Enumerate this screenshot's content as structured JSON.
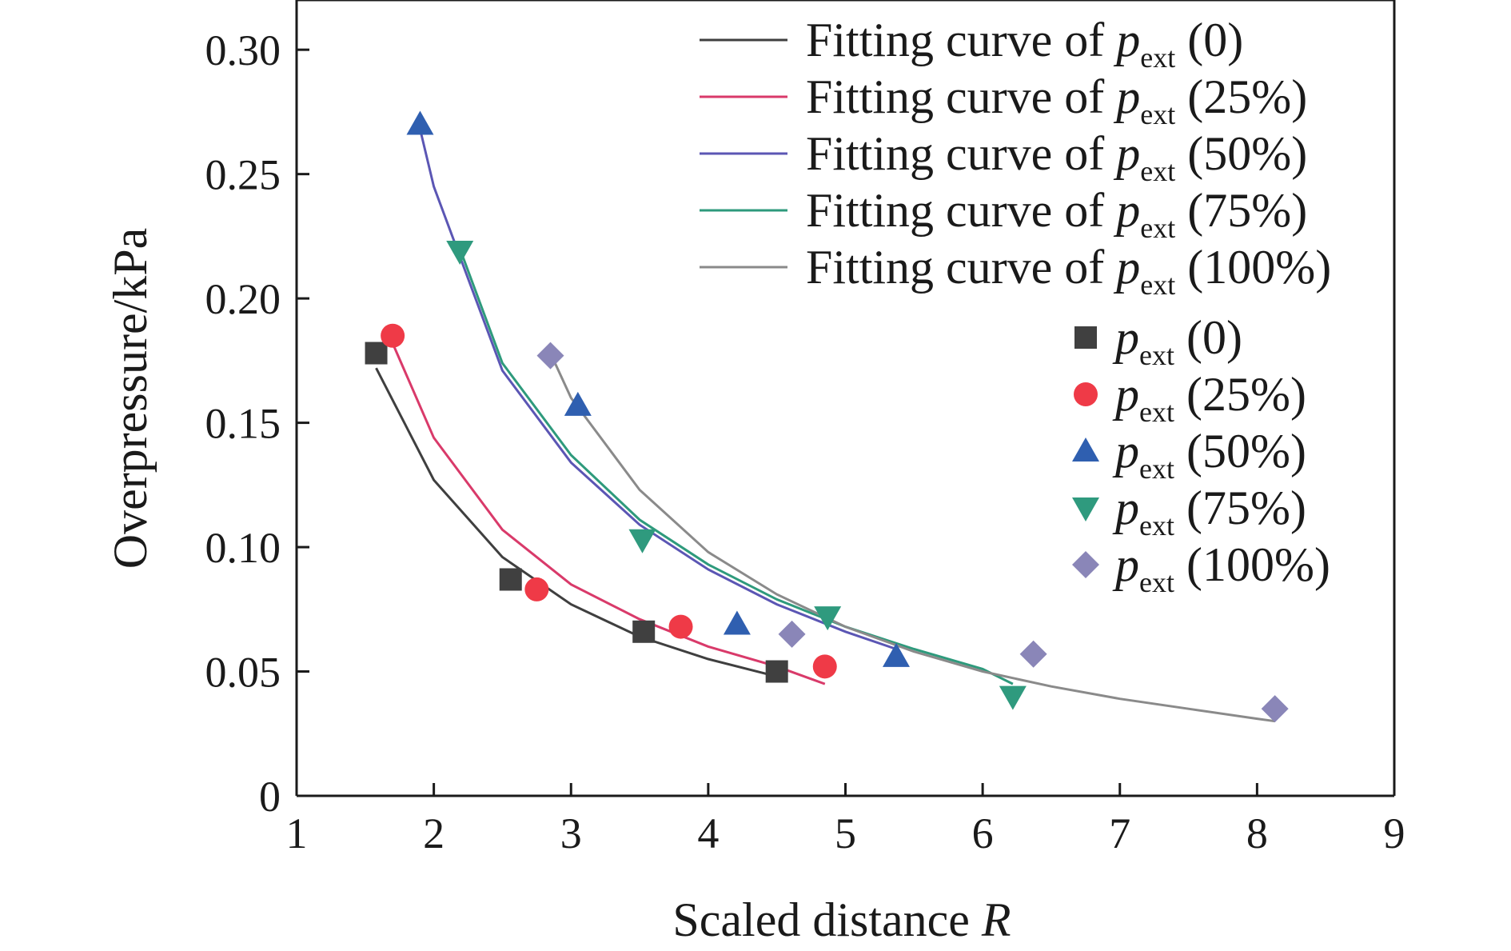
{
  "chart_data": {
    "type": "scatter",
    "xlabel": "Scaled distance",
    "xlabel_var": "R",
    "ylabel": "Overpressure/kPa",
    "xlim": [
      1,
      9
    ],
    "ylim": [
      0,
      0.32
    ],
    "xticks": [
      {
        "value": 1,
        "label": "1"
      },
      {
        "value": 2,
        "label": "2"
      },
      {
        "value": 3,
        "label": "3"
      },
      {
        "value": 4,
        "label": "4"
      },
      {
        "value": 5,
        "label": "5"
      },
      {
        "value": 6,
        "label": "6"
      },
      {
        "value": 7,
        "label": "7"
      },
      {
        "value": 8,
        "label": "8"
      },
      {
        "value": 9,
        "label": "9"
      }
    ],
    "yticks": [
      {
        "value": 0,
        "label": "0"
      },
      {
        "value": 0.05,
        "label": "0.05"
      },
      {
        "value": 0.1,
        "label": "0.10"
      },
      {
        "value": 0.15,
        "label": "0.15"
      },
      {
        "value": 0.2,
        "label": "0.20"
      },
      {
        "value": 0.25,
        "label": "0.25"
      },
      {
        "value": 0.3,
        "label": "0.30"
      }
    ],
    "grid": false,
    "legend_position": "top-right",
    "series": [
      {
        "name": "p_ext (0)",
        "symbol": "p",
        "subscript": "ext",
        "suffix": " (0)",
        "fit_prefix": "Fitting curve of ",
        "marker": "square",
        "marker_color": "#404040",
        "line_color": "#3f3f3f",
        "x": [
          1.58,
          2.56,
          3.53,
          4.5
        ],
        "y": [
          0.178,
          0.087,
          0.066,
          0.05
        ],
        "fit_x": [
          1.58,
          2.0,
          2.5,
          3.0,
          3.5,
          4.0,
          4.5
        ],
        "fit_y": [
          0.172,
          0.127,
          0.096,
          0.077,
          0.064,
          0.055,
          0.048
        ]
      },
      {
        "name": "p_ext (25%)",
        "symbol": "p",
        "subscript": "ext",
        "suffix": " (25%)",
        "fit_prefix": "Fitting curve of ",
        "marker": "circle",
        "marker_color": "#ef3a47",
        "line_color": "#d93a6a",
        "x": [
          1.7,
          2.75,
          3.8,
          4.85
        ],
        "y": [
          0.185,
          0.083,
          0.068,
          0.052
        ],
        "fit_x": [
          1.7,
          2.0,
          2.5,
          3.0,
          3.5,
          4.0,
          4.5,
          4.85
        ],
        "fit_y": [
          0.182,
          0.144,
          0.107,
          0.085,
          0.071,
          0.06,
          0.052,
          0.045
        ]
      },
      {
        "name": "p_ext (50%)",
        "symbol": "p",
        "subscript": "ext",
        "suffix": " (50%)",
        "fit_prefix": "Fitting curve of ",
        "marker": "triangle-up",
        "marker_color": "#2f5fb0",
        "line_color": "#5b56b4",
        "x": [
          1.9,
          3.05,
          4.21,
          5.37
        ],
        "y": [
          0.27,
          0.157,
          0.069,
          0.056
        ],
        "fit_x": [
          1.9,
          2.0,
          2.5,
          3.0,
          3.5,
          4.0,
          4.5,
          5.0,
          5.37
        ],
        "fit_y": [
          0.268,
          0.245,
          0.171,
          0.134,
          0.109,
          0.091,
          0.077,
          0.066,
          0.059
        ]
      },
      {
        "name": "p_ext (75%)",
        "symbol": "p",
        "subscript": "ext",
        "suffix": " (75%)",
        "fit_prefix": "Fitting curve of ",
        "marker": "triangle-down",
        "marker_color": "#2f9a7e",
        "line_color": "#2e9a7c",
        "x": [
          2.19,
          3.52,
          4.87,
          6.22
        ],
        "y": [
          0.219,
          0.103,
          0.072,
          0.04
        ],
        "fit_x": [
          2.19,
          2.5,
          3.0,
          3.5,
          4.0,
          4.5,
          5.0,
          5.5,
          6.0,
          6.22
        ],
        "fit_y": [
          0.22,
          0.174,
          0.137,
          0.111,
          0.093,
          0.079,
          0.068,
          0.059,
          0.051,
          0.045
        ]
      },
      {
        "name": "p_ext (100%)",
        "symbol": "p",
        "subscript": "ext",
        "suffix": " (100%)",
        "fit_prefix": "Fitting curve of ",
        "marker": "diamond",
        "marker_color": "#8a86b8",
        "line_color": "#8a8a8a",
        "x": [
          2.85,
          4.61,
          6.37,
          8.13
        ],
        "y": [
          0.177,
          0.065,
          0.057,
          0.035
        ],
        "fit_x": [
          2.85,
          3.0,
          3.5,
          4.0,
          4.5,
          5.0,
          5.5,
          6.0,
          6.5,
          7.0,
          7.5,
          8.0,
          8.13
        ],
        "fit_y": [
          0.178,
          0.16,
          0.123,
          0.098,
          0.081,
          0.068,
          0.058,
          0.05,
          0.044,
          0.039,
          0.035,
          0.031,
          0.03
        ]
      }
    ]
  }
}
